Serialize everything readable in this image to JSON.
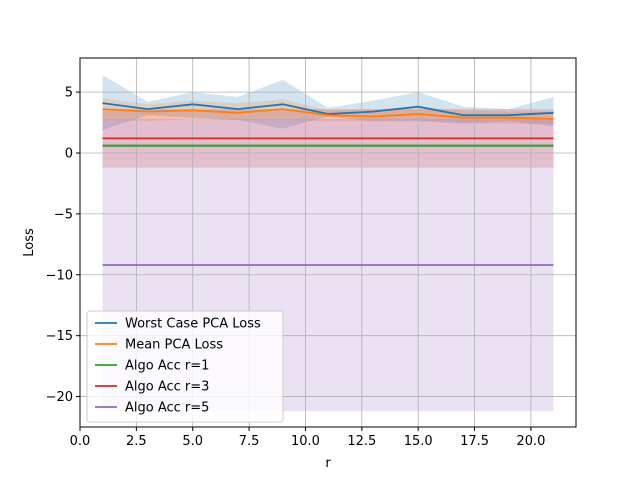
{
  "chart_data": {
    "type": "line",
    "title": "",
    "xlabel": "r",
    "ylabel": "Loss",
    "xlim": [
      0.0,
      22.0
    ],
    "ylim": [
      -22.5,
      7.8
    ],
    "xticks": [
      0.0,
      2.5,
      5.0,
      7.5,
      10.0,
      12.5,
      15.0,
      17.5,
      20.0
    ],
    "xtick_labels": [
      "0.0",
      "2.5",
      "5.0",
      "7.5",
      "10.0",
      "12.5",
      "15.0",
      "17.5",
      "20.0"
    ],
    "yticks": [
      -20,
      -15,
      -10,
      -5,
      0,
      5
    ],
    "ytick_labels": [
      "−20",
      "−15",
      "−10",
      "−5",
      "0",
      "5"
    ],
    "grid": true,
    "legend_position": "lower-left",
    "series": [
      {
        "name": "Worst Case PCA Loss",
        "color": "#1f77b4",
        "x": [
          1,
          3,
          5,
          7,
          9,
          11,
          13,
          15,
          17,
          19,
          21
        ],
        "y": [
          4.1,
          3.6,
          4.0,
          3.6,
          4.0,
          3.2,
          3.4,
          3.8,
          3.1,
          3.1,
          3.3
        ],
        "band_low": [
          1.9,
          3.1,
          2.9,
          2.7,
          2.0,
          3.0,
          2.6,
          2.6,
          2.4,
          2.6,
          2.2
        ],
        "band_high": [
          6.4,
          4.2,
          5.0,
          4.6,
          6.0,
          3.7,
          4.3,
          5.0,
          3.8,
          3.6,
          4.6
        ]
      },
      {
        "name": "Mean PCA Loss",
        "color": "#ff7f0e",
        "x": [
          1,
          3,
          5,
          7,
          9,
          11,
          13,
          15,
          17,
          19,
          21
        ],
        "y": [
          3.6,
          3.4,
          3.5,
          3.3,
          3.6,
          3.1,
          3.0,
          3.2,
          2.9,
          2.9,
          2.8
        ],
        "band_low": [
          2.7,
          2.6,
          2.8,
          2.7,
          2.7,
          2.6,
          2.6,
          2.7,
          2.5,
          2.4,
          2.4
        ],
        "band_high": [
          4.5,
          4.0,
          4.3,
          4.1,
          4.4,
          3.5,
          3.6,
          3.8,
          3.5,
          3.4,
          3.4
        ]
      },
      {
        "name": "Algo Acc r=1",
        "color": "#2ca02c",
        "x": [
          1,
          21
        ],
        "y": [
          0.6,
          0.6
        ],
        "band_low": [
          0.45,
          0.45
        ],
        "band_high": [
          0.75,
          0.75
        ]
      },
      {
        "name": "Algo Acc r=3",
        "color": "#d62728",
        "x": [
          1,
          21
        ],
        "y": [
          1.2,
          1.2
        ],
        "band_low": [
          -1.2,
          -1.2
        ],
        "band_high": [
          3.6,
          3.6
        ]
      },
      {
        "name": "Algo Acc r=5",
        "color": "#9467bd",
        "x": [
          1,
          21
        ],
        "y": [
          -9.2,
          -9.2
        ],
        "band_low": [
          -21.2,
          -21.2
        ],
        "band_high": [
          2.8,
          2.8
        ]
      }
    ]
  }
}
